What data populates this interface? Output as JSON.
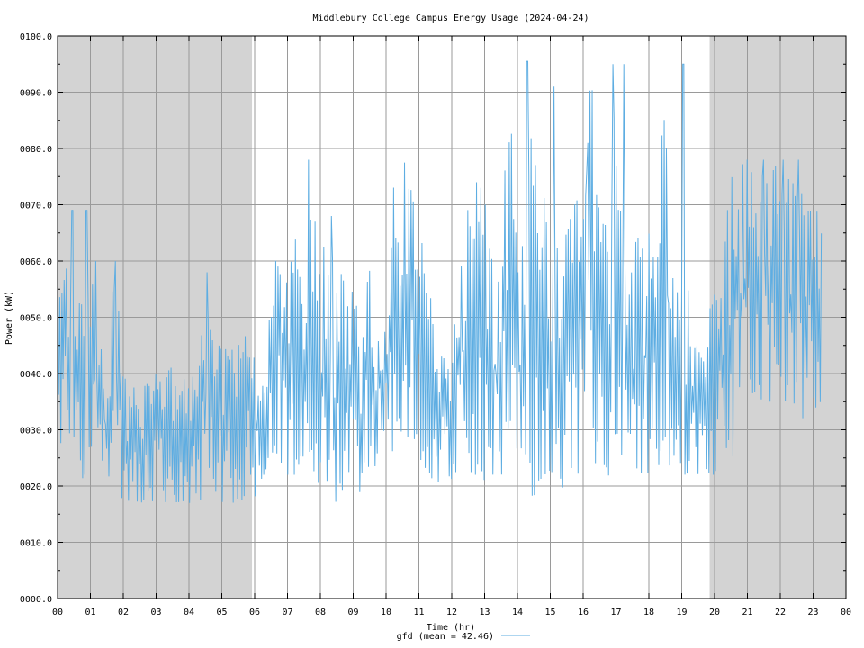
{
  "chart_data": {
    "type": "line",
    "title": "Middlebury College Campus Energy Usage (2024-04-24)",
    "xlabel": "Time (hr)",
    "ylabel": "Power (kW)",
    "xlim": [
      0,
      24
    ],
    "ylim": [
      0,
      100
    ],
    "grid": true,
    "x_ticks": [
      0,
      1,
      2,
      3,
      4,
      5,
      6,
      7,
      8,
      9,
      10,
      11,
      12,
      13,
      14,
      15,
      16,
      17,
      18,
      19,
      20,
      21,
      22,
      23,
      24
    ],
    "x_tick_labels": [
      "00",
      "01",
      "02",
      "03",
      "04",
      "05",
      "06",
      "07",
      "08",
      "09",
      "10",
      "11",
      "12",
      "13",
      "14",
      "15",
      "16",
      "17",
      "18",
      "19",
      "20",
      "21",
      "22",
      "23",
      "00"
    ],
    "y_ticks": [
      0,
      10,
      20,
      30,
      40,
      50,
      60,
      70,
      80,
      90,
      100
    ],
    "y_tick_labels": [
      "0000.0",
      "0010.0",
      "0020.0",
      "0030.0",
      "0040.0",
      "0050.0",
      "0060.0",
      "0070.0",
      "0080.0",
      "0090.0",
      "0100.0"
    ],
    "shaded_regions": [
      [
        0,
        5.92
      ],
      [
        19.85,
        24
      ]
    ],
    "legend": {
      "label": "gfd (mean = 42.46)",
      "placement": "bottom-center"
    },
    "colors": {
      "line": "#5dade2",
      "shade": "#d3d3d3",
      "grid": "#9a9a9a"
    },
    "series": [
      {
        "name": "gfd",
        "mean": 42.46,
        "x": [
          0.0,
          0.25,
          0.5,
          0.75,
          1.0,
          1.25,
          1.5,
          1.75,
          2.0,
          2.25,
          2.5,
          2.75,
          3.0,
          3.25,
          3.5,
          3.75,
          4.0,
          4.25,
          4.5,
          4.75,
          5.0,
          5.25,
          5.5,
          5.75,
          6.0,
          6.25,
          6.5,
          6.75,
          7.0,
          7.25,
          7.5,
          7.75,
          8.0,
          8.25,
          8.5,
          8.75,
          9.0,
          9.25,
          9.5,
          9.75,
          10.0,
          10.25,
          10.5,
          10.75,
          11.0,
          11.25,
          11.5,
          11.75,
          12.0,
          12.25,
          12.5,
          12.75,
          13.0,
          13.25,
          13.5,
          13.75,
          14.0,
          14.25,
          14.5,
          14.75,
          15.0,
          15.25,
          15.5,
          15.75,
          16.0,
          16.25,
          16.5,
          16.75,
          17.0,
          17.25,
          17.5,
          17.75,
          18.0,
          18.25,
          18.5,
          18.75,
          19.0,
          19.25,
          19.5,
          19.75,
          20.0,
          20.25,
          20.5,
          20.75,
          21.0,
          21.25,
          21.5,
          21.75,
          22.0,
          22.25,
          22.5,
          22.75,
          23.0,
          23.25
        ],
        "low": [
          22,
          26,
          22,
          21,
          22,
          30,
          17,
          17,
          18,
          17,
          17,
          17,
          17,
          17,
          17,
          17,
          17,
          17,
          17,
          17,
          17,
          17,
          17,
          17,
          17,
          22,
          22,
          22,
          21,
          22,
          22,
          22,
          20,
          18,
          17,
          20,
          17,
          17,
          20,
          25,
          30,
          25,
          29,
          28,
          21,
          22,
          20,
          21,
          21,
          24,
          22,
          22,
          21,
          22,
          22,
          22,
          22,
          22,
          17,
          22,
          22,
          17,
          22,
          22,
          22,
          21,
          21,
          21,
          22,
          22,
          22,
          21,
          22,
          22,
          22,
          25,
          22,
          22,
          22,
          22,
          22,
          25,
          25,
          25,
          35,
          35,
          35,
          35,
          34,
          34,
          30,
          30,
          30,
          30
        ],
        "high": [
          52,
          58,
          69,
          65,
          60,
          45,
          45,
          60,
          40,
          38,
          38,
          39,
          40,
          38,
          43,
          39,
          39,
          45,
          52,
          45,
          47,
          44,
          45,
          47,
          47,
          40,
          55,
          64,
          56,
          65,
          50,
          78,
          60,
          66,
          55,
          60,
          55,
          48,
          65,
          47,
          48,
          77,
          60,
          77,
          68,
          60,
          45,
          43,
          45,
          57,
          72,
          73,
          73,
          60,
          63,
          95,
          60,
          66,
          90,
          75,
          62,
          63,
          65,
          72,
          67,
          95,
          75,
          65,
          95,
          64,
          63,
          65,
          65,
          65,
          95,
          56,
          55,
          55,
          50,
          52,
          55,
          57,
          78,
          78,
          78,
          77,
          78,
          78,
          77,
          78,
          72,
          72,
          73,
          65
        ],
        "peaks": [
          [
            0.45,
            69
          ],
          [
            0.88,
            69
          ],
          [
            1.15,
            60
          ],
          [
            1.75,
            60
          ],
          [
            4.55,
            58
          ],
          [
            7.65,
            78
          ],
          [
            8.35,
            68
          ],
          [
            10.55,
            77.5
          ],
          [
            12.75,
            74
          ],
          [
            14.3,
            95.5
          ],
          [
            15.1,
            91
          ],
          [
            16.1,
            76
          ],
          [
            16.9,
            95
          ],
          [
            17.25,
            95
          ],
          [
            19.05,
            95
          ],
          [
            21.0,
            78
          ],
          [
            21.5,
            78
          ],
          [
            22.1,
            78
          ],
          [
            22.55,
            78
          ]
        ]
      }
    ]
  }
}
